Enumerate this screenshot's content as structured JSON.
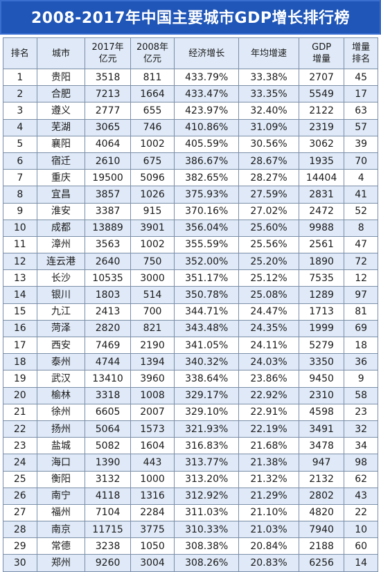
{
  "title": "2008-2017年中国主要城市GDP增长排行榜",
  "headers": {
    "rank": "排名",
    "city": "城市",
    "gdp2017": [
      "2017年",
      "亿元"
    ],
    "gdp2008": [
      "2008年",
      "亿元"
    ],
    "growth": "经济增长",
    "avg": "年均增速",
    "inc": [
      "GDP",
      "增量"
    ],
    "incrank": [
      "增量",
      "排名"
    ]
  },
  "rows": [
    [
      "1",
      "贵阳",
      "3518",
      "811",
      "433.79%",
      "33.38%",
      "2707",
      "45"
    ],
    [
      "2",
      "合肥",
      "7213",
      "1664",
      "433.47%",
      "33.35%",
      "5549",
      "17"
    ],
    [
      "3",
      "遵义",
      "2777",
      "655",
      "423.97%",
      "32.40%",
      "2122",
      "63"
    ],
    [
      "4",
      "芜湖",
      "3065",
      "746",
      "410.86%",
      "31.09%",
      "2319",
      "57"
    ],
    [
      "5",
      "襄阳",
      "4064",
      "1002",
      "405.59%",
      "30.56%",
      "3062",
      "39"
    ],
    [
      "6",
      "宿迁",
      "2610",
      "675",
      "386.67%",
      "28.67%",
      "1935",
      "70"
    ],
    [
      "7",
      "重庆",
      "19500",
      "5096",
      "382.65%",
      "28.27%",
      "14404",
      "4"
    ],
    [
      "8",
      "宜昌",
      "3857",
      "1026",
      "375.93%",
      "27.59%",
      "2831",
      "41"
    ],
    [
      "9",
      "淮安",
      "3387",
      "915",
      "370.16%",
      "27.02%",
      "2472",
      "52"
    ],
    [
      "10",
      "成都",
      "13889",
      "3901",
      "356.04%",
      "25.60%",
      "9988",
      "8"
    ],
    [
      "11",
      "漳州",
      "3563",
      "1002",
      "355.59%",
      "25.56%",
      "2561",
      "47"
    ],
    [
      "12",
      "连云港",
      "2640",
      "750",
      "352.00%",
      "25.20%",
      "1890",
      "72"
    ],
    [
      "13",
      "长沙",
      "10535",
      "3000",
      "351.17%",
      "25.12%",
      "7535",
      "12"
    ],
    [
      "14",
      "银川",
      "1803",
      "514",
      "350.78%",
      "25.08%",
      "1289",
      "97"
    ],
    [
      "15",
      "九江",
      "2413",
      "700",
      "344.71%",
      "24.47%",
      "1713",
      "81"
    ],
    [
      "16",
      "菏泽",
      "2820",
      "821",
      "343.48%",
      "24.35%",
      "1999",
      "69"
    ],
    [
      "17",
      "西安",
      "7469",
      "2190",
      "341.05%",
      "24.11%",
      "5279",
      "18"
    ],
    [
      "18",
      "泰州",
      "4744",
      "1394",
      "340.32%",
      "24.03%",
      "3350",
      "36"
    ],
    [
      "19",
      "武汉",
      "13410",
      "3960",
      "338.64%",
      "23.86%",
      "9450",
      "9"
    ],
    [
      "20",
      "榆林",
      "3318",
      "1008",
      "329.17%",
      "22.92%",
      "2310",
      "58"
    ],
    [
      "21",
      "徐州",
      "6605",
      "2007",
      "329.10%",
      "22.91%",
      "4598",
      "23"
    ],
    [
      "22",
      "扬州",
      "5064",
      "1573",
      "321.93%",
      "22.19%",
      "3491",
      "32"
    ],
    [
      "23",
      "盐城",
      "5082",
      "1604",
      "316.83%",
      "21.68%",
      "3478",
      "34"
    ],
    [
      "24",
      "海口",
      "1390",
      "443",
      "313.77%",
      "21.38%",
      "947",
      "98"
    ],
    [
      "25",
      "衡阳",
      "3132",
      "1000",
      "313.20%",
      "21.32%",
      "2132",
      "62"
    ],
    [
      "26",
      "南宁",
      "4118",
      "1316",
      "312.92%",
      "21.29%",
      "2802",
      "43"
    ],
    [
      "27",
      "福州",
      "7104",
      "2284",
      "311.03%",
      "21.10%",
      "4820",
      "22"
    ],
    [
      "28",
      "南京",
      "11715",
      "3775",
      "310.33%",
      "21.03%",
      "7940",
      "10"
    ],
    [
      "29",
      "常德",
      "3238",
      "1050",
      "308.38%",
      "20.84%",
      "2188",
      "60"
    ],
    [
      "30",
      "郑州",
      "9260",
      "3004",
      "308.26%",
      "20.83%",
      "6256",
      "14"
    ]
  ]
}
